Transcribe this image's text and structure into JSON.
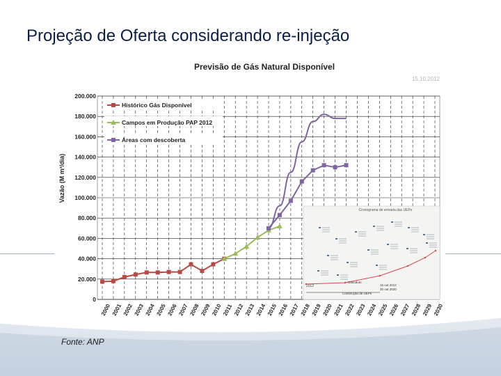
{
  "slide": {
    "title": "Projeção de Oferta considerando re-injeção",
    "source": "Fonte: ANP"
  },
  "chart_data": {
    "type": "line",
    "title": "Previsão de Gás Natural Disponível",
    "date_stamp": "15.10.2012",
    "ylabel": "Vazão (M m³/dia)",
    "xlabel": "",
    "ylim": [
      0,
      200000
    ],
    "y_ticks": [
      "0",
      "20.000",
      "40.000",
      "60.000",
      "80.000",
      "100.000",
      "120.000",
      "140.000",
      "160.000",
      "180.000",
      "200.000"
    ],
    "legend_position": "top-left",
    "grid": true,
    "x": [
      "2000",
      "2001",
      "2002",
      "2003",
      "2004",
      "2005",
      "2006",
      "2007",
      "2008",
      "2009",
      "2010",
      "2011",
      "2012",
      "2013",
      "2014",
      "2015",
      "2016",
      "2017",
      "2018",
      "2019",
      "2020",
      "2021",
      "2022",
      "2023",
      "2024",
      "2025",
      "2026",
      "2027",
      "2028",
      "2029",
      "2030"
    ],
    "series": [
      {
        "name": "Histórico Gás Disponível",
        "color": "#b84a46",
        "marker": "square",
        "x": [
          "2000",
          "2001",
          "2002",
          "2003",
          "2004",
          "2005",
          "2006",
          "2007",
          "2008",
          "2009",
          "2010",
          "2011"
        ],
        "values": [
          17500,
          18000,
          22000,
          24500,
          26500,
          26500,
          27000,
          27000,
          34500,
          28000,
          34500,
          40000
        ]
      },
      {
        "name": "Campos em Produção PAP 2012",
        "color": "#9bbb59",
        "marker": "triangle",
        "x": [
          "2011",
          "2012",
          "2013",
          "2014",
          "2015",
          "2016"
        ],
        "values": [
          40000,
          45000,
          52000,
          61000,
          68000,
          72000
        ]
      },
      {
        "name": "Áreas com descoberta",
        "color": "#8064a2",
        "marker": "square",
        "x": [
          "2015",
          "2016",
          "2017",
          "2018",
          "2019",
          "2020",
          "2021",
          "2022"
        ],
        "values": [
          70000,
          83000,
          97000,
          116000,
          127000,
          132000,
          130000,
          132000
        ]
      },
      {
        "name": "",
        "color": "#8064a2",
        "marker": "none",
        "x": [
          "2015",
          "2016",
          "2017",
          "2018",
          "2019",
          "2020",
          "2021",
          "2022"
        ],
        "values": [
          70000,
          92000,
          125000,
          155000,
          175000,
          182000,
          178000,
          178000
        ]
      }
    ],
    "inset_timeline": {
      "title": "Cronograma de entrada das UEPs",
      "start_label": "2012",
      "legend": [
        "Construção de UEPs",
        "15 out 2012",
        "30 out 2020"
      ],
      "note": "Gasoduto"
    }
  }
}
